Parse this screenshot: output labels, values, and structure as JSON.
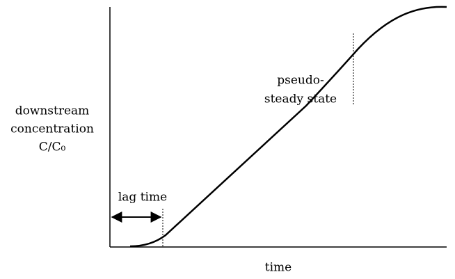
{
  "y_label": [
    "downstream",
    "concentration",
    "C/C₀"
  ],
  "x_label": "time",
  "annotations": {
    "lag": "lag time",
    "steady": [
      "pseudo-",
      "steady state"
    ]
  }
}
